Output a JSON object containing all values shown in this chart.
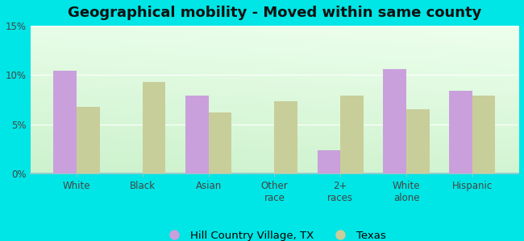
{
  "title": "Geographical mobility - Moved within same county",
  "categories": [
    "White",
    "Black",
    "Asian",
    "Other\nrace",
    "2+\nraces",
    "White\nalone",
    "Hispanic"
  ],
  "hcv_values": [
    10.4,
    0,
    7.9,
    0,
    2.4,
    10.6,
    8.4
  ],
  "texas_values": [
    6.8,
    9.3,
    6.2,
    7.3,
    7.9,
    6.5,
    7.9
  ],
  "hcv_color": "#c9a0dc",
  "texas_color": "#c8ce9a",
  "background_outer": "#00e5e5",
  "ylim": [
    0,
    15
  ],
  "yticks": [
    0,
    5,
    10,
    15
  ],
  "ytick_labels": [
    "0%",
    "5%",
    "10%",
    "15%"
  ],
  "bar_width": 0.35,
  "legend_label_hcv": "Hill Country Village, TX",
  "legend_label_texas": "Texas",
  "title_fontsize": 13,
  "tick_fontsize": 8.5,
  "legend_fontsize": 9.5
}
